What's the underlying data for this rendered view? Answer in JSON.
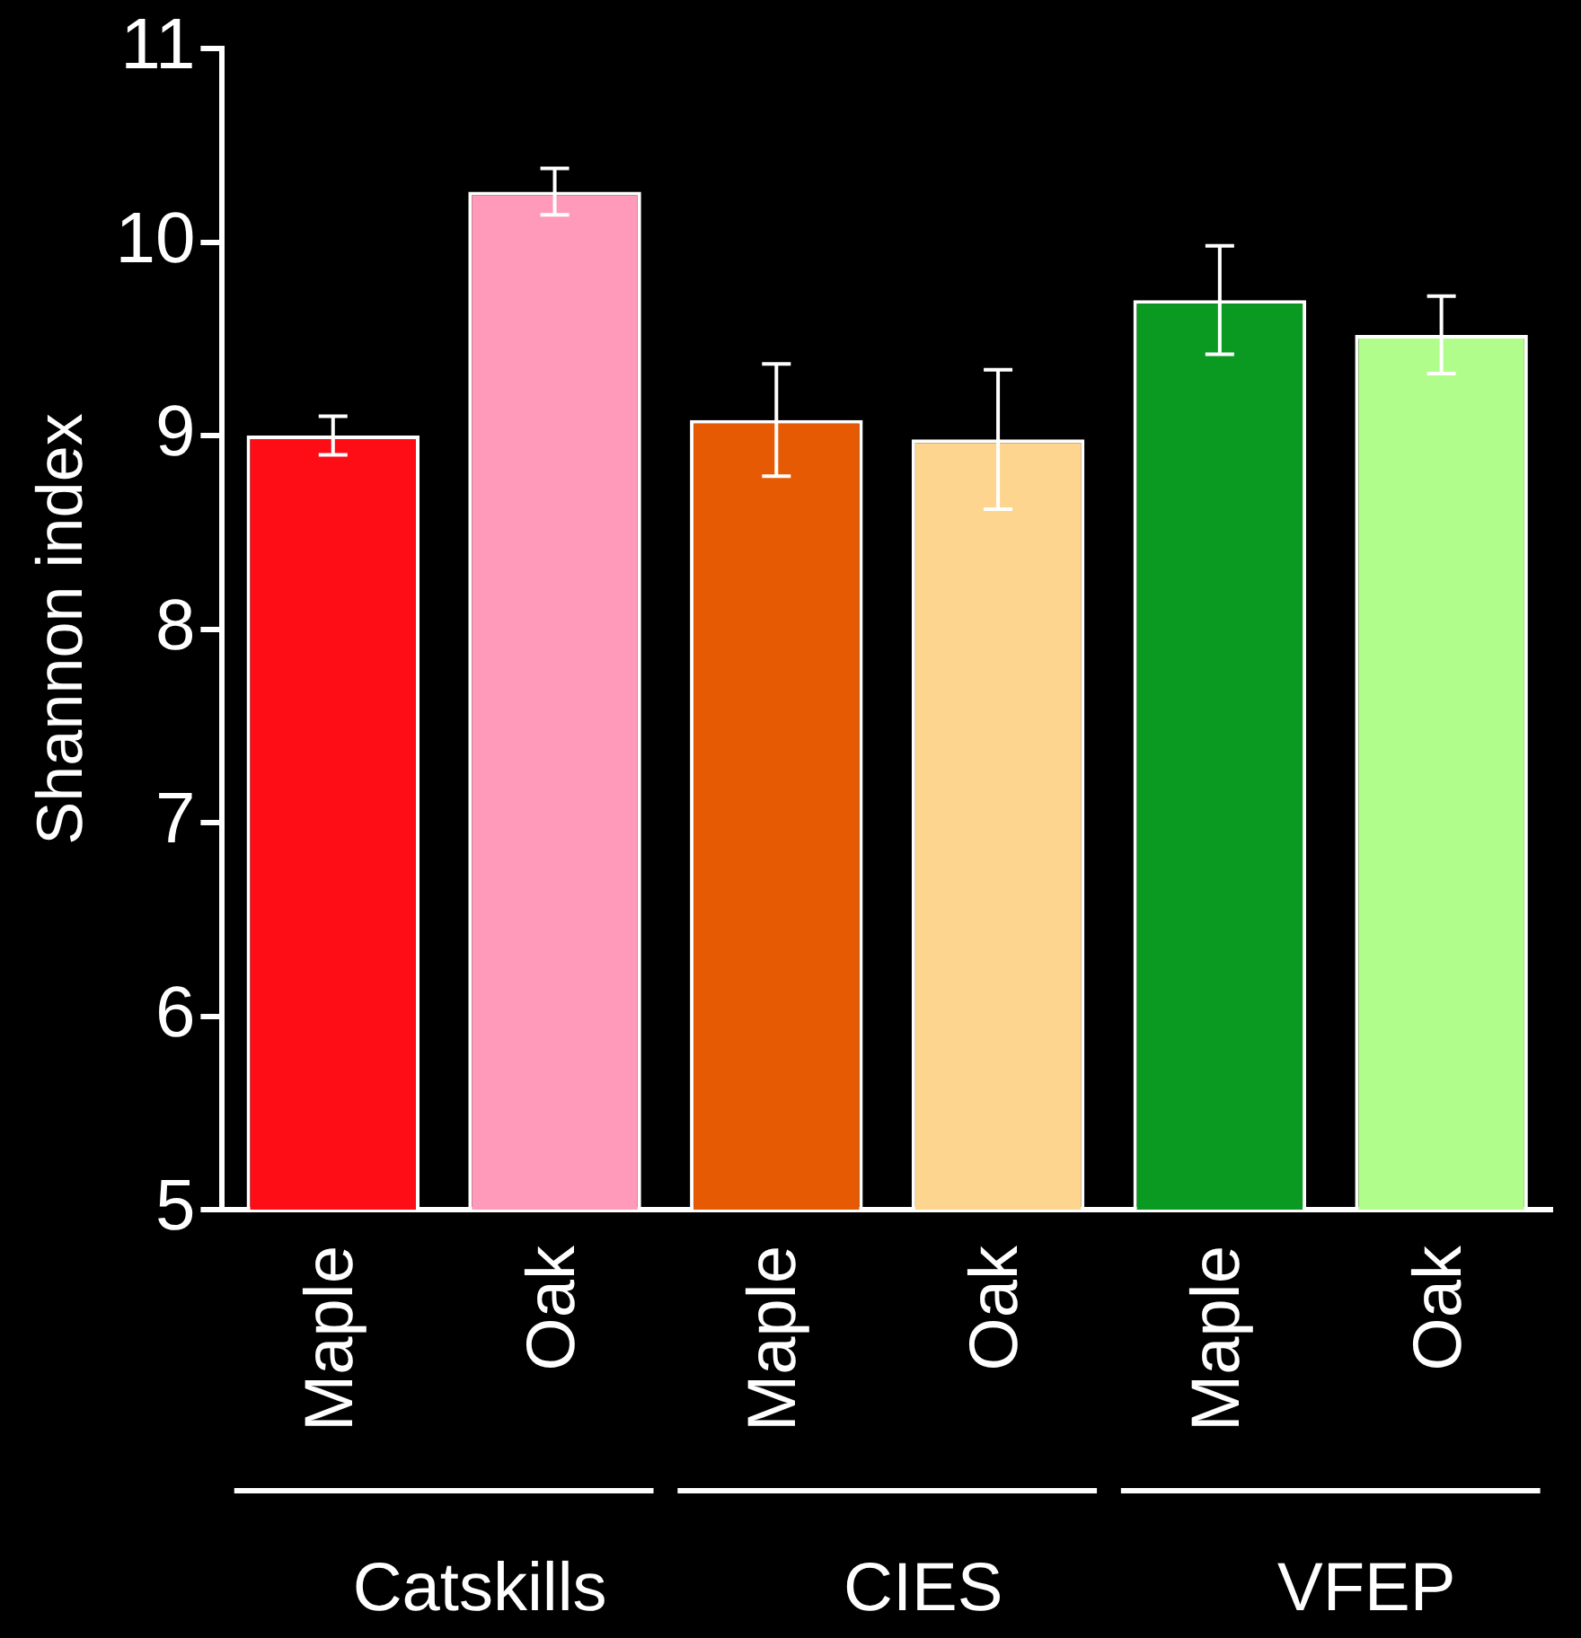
{
  "chart_data": {
    "type": "bar",
    "ylabel": "Shannon index",
    "categories": [
      "Maple",
      "Oak",
      "Maple",
      "Oak",
      "Maple",
      "Oak"
    ],
    "values": [
      9.0,
      10.26,
      9.08,
      8.98,
      9.7,
      9.52
    ],
    "errors": [
      0.1,
      0.12,
      0.29,
      0.36,
      0.28,
      0.2
    ],
    "colors": [
      "#ff0d16",
      "#ff9abb",
      "#e65a04",
      "#fed58e",
      "#0a9a22",
      "#b1fd8b"
    ],
    "ylim": [
      5,
      11
    ],
    "yticks": [
      5,
      6,
      7,
      8,
      9,
      10,
      11
    ],
    "grid": false,
    "legend": false,
    "annotations": [
      "Catskills",
      "CIES",
      "VFEP"
    ]
  }
}
